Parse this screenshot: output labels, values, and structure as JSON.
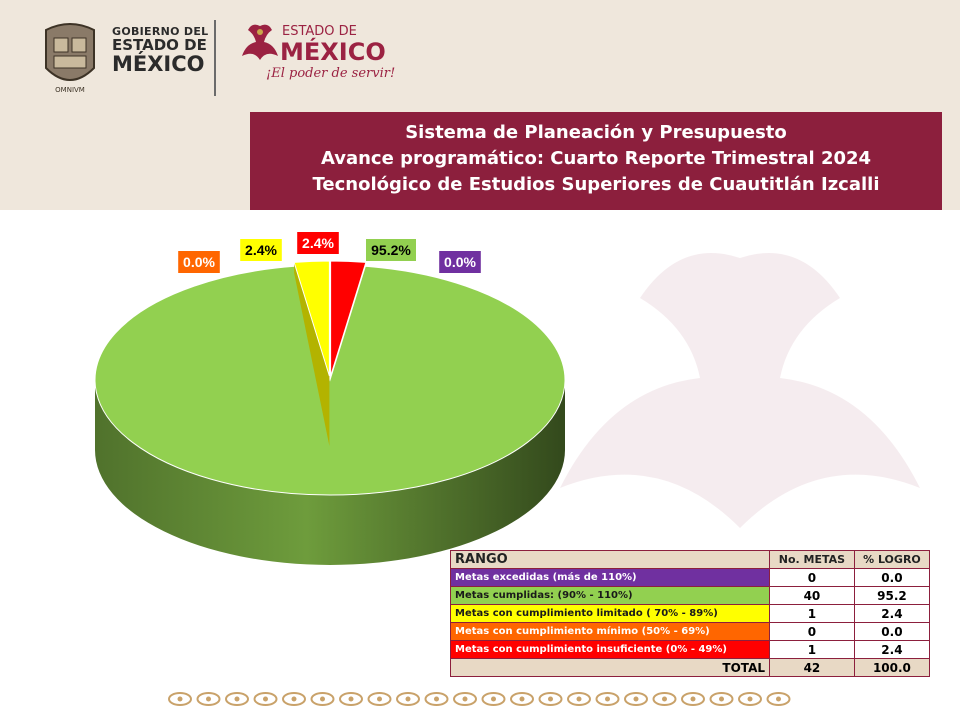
{
  "header": {
    "gob_logo": {
      "line1": "GOBIERNO DEL",
      "line2": "ESTADO DE",
      "line3": "MÉXICO"
    },
    "edo_logo": {
      "small": "ESTADO DE",
      "big": "MÉXICO",
      "slogan": "¡El poder de servir!"
    },
    "title_lines": [
      "Sistema de Planeación y Presupuesto",
      "Avance programático: Cuarto Reporte Trimestral 2024",
      "Tecnológico de Estudios Superiores de Cuautitlán Izcalli"
    ]
  },
  "chart_data": {
    "type": "pie",
    "categories": [
      "Metas excedidas (más de 110%)",
      "Metas cumplidas: (90% - 110%)",
      "Metas con cumplimiento limitado ( 70% - 89%)",
      "Metas con cumplimiento mínimo (50% - 69%)",
      "Metas con cumplimiento insuficiente (0% - 49%)"
    ],
    "values": [
      0.0,
      95.2,
      2.4,
      0.0,
      2.4
    ],
    "data_labels": [
      "0.0%",
      "95.2%",
      "2.4%",
      "0.0%",
      "2.4%"
    ],
    "colors": [
      "#7030a0",
      "#92d050",
      "#ffff00",
      "#ff6600",
      "#ff0000"
    ],
    "three_d": true
  },
  "table": {
    "headers": [
      "RANGO",
      "No. METAS",
      "% LOGRO"
    ],
    "rows": [
      {
        "label": "Metas excedidas (más de 110%)",
        "metas": "0",
        "logro": "0.0",
        "bg": "#7030a0",
        "fg": "#ffffff"
      },
      {
        "label": "Metas cumplidas: (90%  - 110%)",
        "metas": "40",
        "logro": "95.2",
        "bg": "#92d050",
        "fg": "#1a1a1a"
      },
      {
        "label": "Metas con cumplimiento limitado ( 70% - 89%)",
        "metas": "1",
        "logro": "2.4",
        "bg": "#ffff00",
        "fg": "#1a1a1a"
      },
      {
        "label": "Metas con cumplimiento mínimo (50% - 69%)",
        "metas": "0",
        "logro": "0.0",
        "bg": "#ff6600",
        "fg": "#ffffff"
      },
      {
        "label": "Metas con cumplimiento insuficiente (0% - 49%)",
        "metas": "1",
        "logro": "2.4",
        "bg": "#ff0000",
        "fg": "#ffffff"
      }
    ],
    "total": {
      "label": "TOTAL",
      "metas": "42",
      "logro": "100.0"
    }
  }
}
